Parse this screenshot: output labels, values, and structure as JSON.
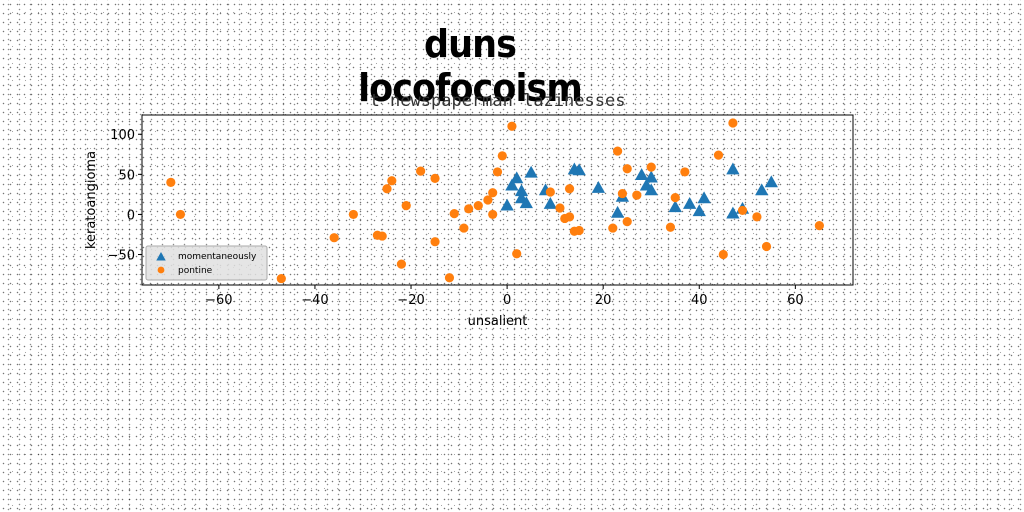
{
  "header": {
    "title": "duns locofocoism"
  },
  "chart_data": {
    "type": "scatter",
    "title": "t newspaperman lazinesses",
    "xlabel": "unsalient",
    "ylabel": "keratoangioma",
    "xlim": [
      -76,
      72
    ],
    "ylim": [
      -88,
      124
    ],
    "xticks": [
      -60,
      -40,
      -20,
      0,
      20,
      40,
      60
    ],
    "yticks": [
      -50,
      0,
      50,
      100
    ],
    "grid": false,
    "legend_position": "lower-left",
    "series": [
      {
        "name": "momentaneously",
        "marker": "triangle",
        "color": "#1f77b4",
        "x": [
          0,
          1,
          2,
          3,
          3,
          4,
          5,
          8,
          9,
          14,
          15,
          19,
          23,
          24,
          28,
          29,
          30,
          30,
          35,
          38,
          40,
          41,
          47,
          47,
          49,
          53,
          55
        ],
        "y": [
          11,
          36,
          45,
          29,
          20,
          14,
          52,
          30,
          13,
          56,
          55,
          33,
          2,
          22,
          49,
          36,
          46,
          30,
          9,
          13,
          4,
          20,
          1,
          56,
          7,
          30,
          40
        ]
      },
      {
        "name": "pontine",
        "marker": "circle",
        "color": "#ff7f0e",
        "x": [
          -70,
          -68,
          -47,
          -36,
          -32,
          -27,
          -26,
          -25,
          -24,
          -21,
          -22,
          -18,
          -15,
          -15,
          -12,
          -11,
          -9,
          -8,
          -6,
          -4,
          -3,
          -3,
          -2,
          -1,
          1,
          2,
          9,
          11,
          12,
          13,
          13,
          14,
          15,
          22,
          23,
          24,
          25,
          25,
          27,
          30,
          34,
          35,
          37,
          44,
          45,
          47,
          49,
          52,
          54,
          65
        ],
        "y": [
          40,
          0,
          -80,
          -29,
          0,
          -26,
          -27,
          32,
          42,
          11,
          -62,
          54,
          45,
          -34,
          -79,
          1,
          -17,
          7,
          11,
          18,
          27,
          0,
          53,
          73,
          110,
          -49,
          28,
          8,
          -5,
          -3,
          32,
          -21,
          -20,
          -17,
          79,
          26,
          -9,
          57,
          24,
          59,
          -16,
          21,
          53,
          74,
          -50,
          114,
          5,
          -3,
          -40,
          -14
        ]
      }
    ]
  }
}
